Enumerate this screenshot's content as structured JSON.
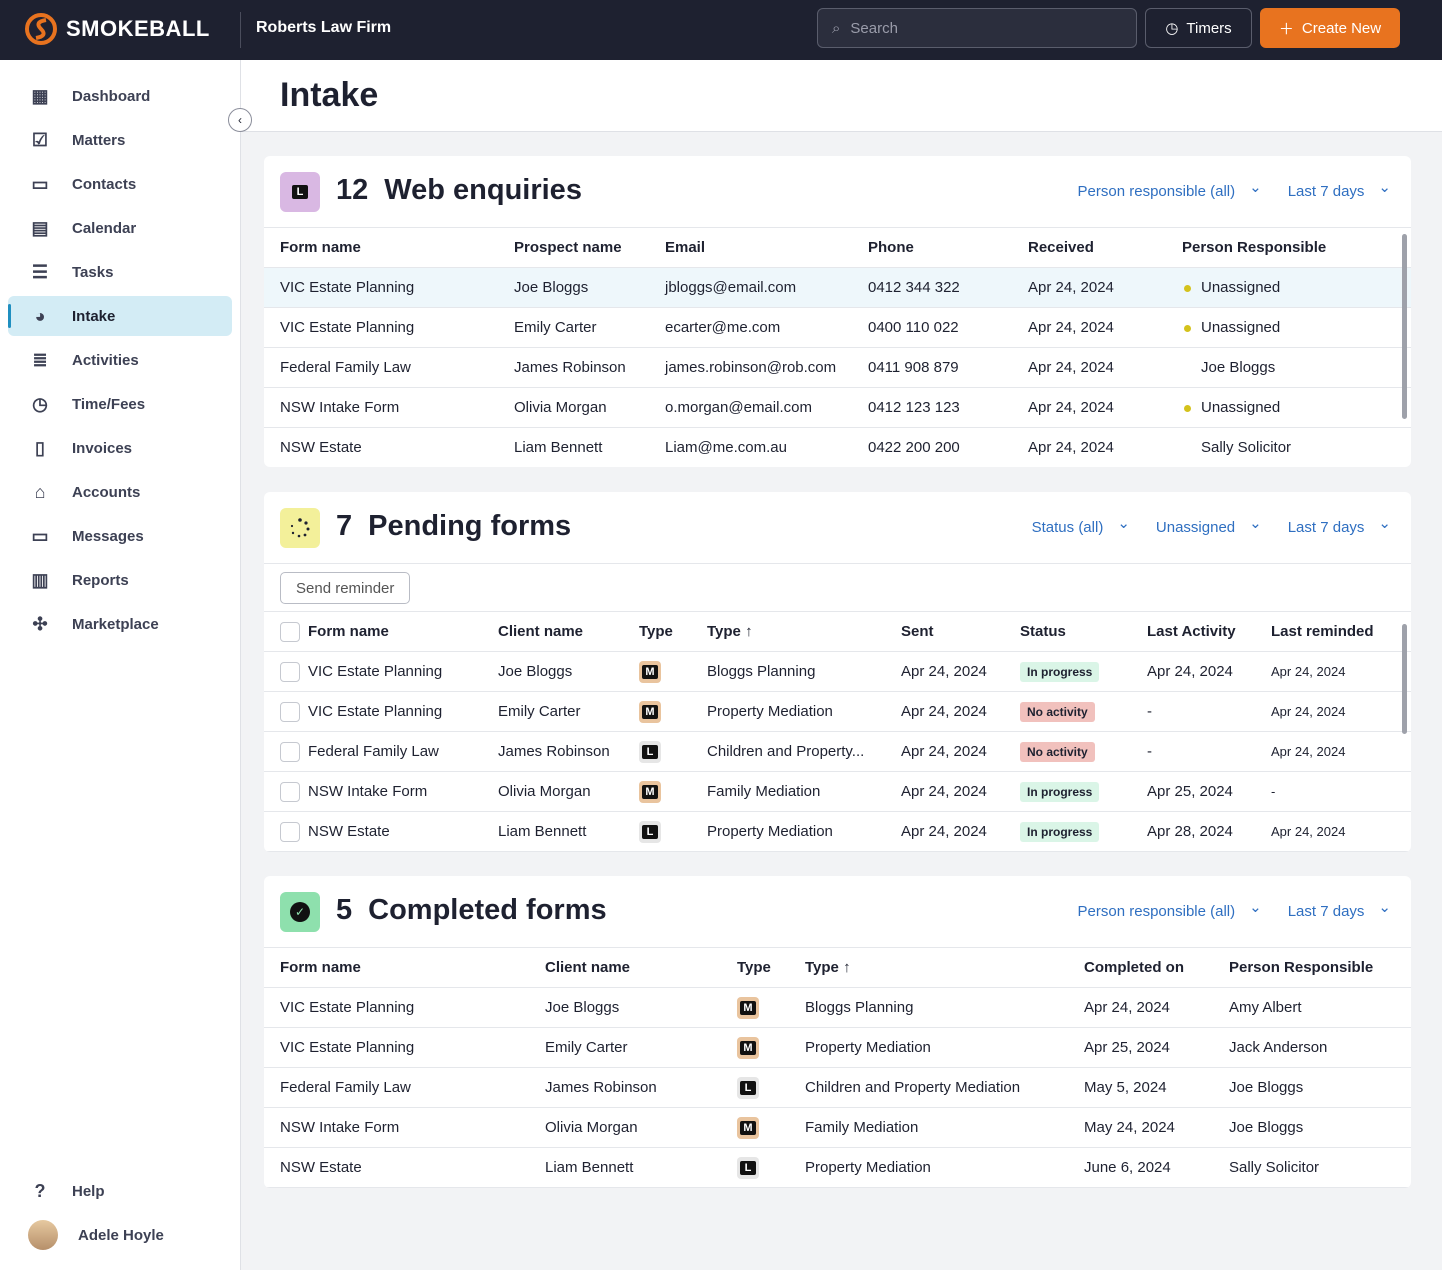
{
  "topbar": {
    "brand": "SMOKEBALL",
    "firm": "Roberts Law Firm",
    "search_placeholder": "Search",
    "timers": "Timers",
    "create_new": "Create New"
  },
  "sidebar": {
    "items": [
      {
        "label": "Dashboard",
        "icon": "dashboard-icon",
        "glyph": "▦"
      },
      {
        "label": "Matters",
        "icon": "matters-icon",
        "glyph": "☑"
      },
      {
        "label": "Contacts",
        "icon": "contacts-icon",
        "glyph": "▭"
      },
      {
        "label": "Calendar",
        "icon": "calendar-icon",
        "glyph": "▤"
      },
      {
        "label": "Tasks",
        "icon": "tasks-icon",
        "glyph": "☰"
      },
      {
        "label": "Intake",
        "icon": "intake-icon",
        "glyph": "◕",
        "active": true
      },
      {
        "label": "Activities",
        "icon": "activities-icon",
        "glyph": "≣"
      },
      {
        "label": "Time/Fees",
        "icon": "clock-icon",
        "glyph": "◷"
      },
      {
        "label": "Invoices",
        "icon": "invoice-icon",
        "glyph": "▯"
      },
      {
        "label": "Accounts",
        "icon": "bank-icon",
        "glyph": "⌂"
      },
      {
        "label": "Messages",
        "icon": "messages-icon",
        "glyph": "▭"
      },
      {
        "label": "Reports",
        "icon": "reports-icon",
        "glyph": "▥"
      },
      {
        "label": "Marketplace",
        "icon": "puzzle-icon",
        "glyph": "✣"
      }
    ],
    "help": "Help",
    "user": "Adele Hoyle"
  },
  "page": {
    "title": "Intake"
  },
  "colors": {
    "accent": "#e8731f",
    "topbar": "#1e2130",
    "link": "#2f6fc1"
  },
  "web": {
    "count": "12",
    "title": "Web enquiries",
    "filters": [
      "Person responsible (all)",
      "Last 7 days"
    ],
    "headers": [
      "Form name",
      "Prospect name",
      "Email",
      "Phone",
      "Received",
      "Person Responsible"
    ],
    "rows": [
      [
        "VIC Estate Planning",
        "Joe Bloggs",
        "jbloggs@email.com",
        "0412 344 322",
        "Apr 24, 2024",
        "Unassigned"
      ],
      [
        "VIC Estate Planning",
        "Emily Carter",
        "ecarter@me.com",
        "0400 110 022",
        "Apr 24, 2024",
        "Unassigned"
      ],
      [
        "Federal Family Law",
        "James Robinson",
        "james.robinson@rob.com",
        "0411 908 879",
        "Apr 24, 2024",
        "Joe Bloggs"
      ],
      [
        "NSW Intake Form",
        "Olivia Morgan",
        "o.morgan@email.com",
        "0412 123 123",
        "Apr 24, 2024",
        "Unassigned"
      ],
      [
        "NSW Estate",
        "Liam Bennett",
        "Liam@me.com.au",
        "0422 200 200",
        "Apr 24, 2024",
        "Sally Solicitor"
      ]
    ]
  },
  "pending": {
    "count": "7",
    "title": "Pending forms",
    "filters": [
      "Status (all)",
      "Unassigned",
      "Last 7 days"
    ],
    "send_reminder": "Send reminder",
    "headers": [
      "Form name",
      "Client name",
      "Type",
      "Type ↑",
      "Sent",
      "Status",
      "Last Activity",
      "Last reminded"
    ],
    "rows": [
      [
        "VIC Estate Planning",
        "Joe Bloggs",
        "M",
        "Bloggs Planning",
        "Apr 24, 2024",
        "In progress",
        "Apr 24, 2024",
        "Apr 24, 2024"
      ],
      [
        "VIC Estate Planning",
        "Emily Carter",
        "M",
        "Property Mediation",
        "Apr 24, 2024",
        "No activity",
        "-",
        "Apr 24, 2024"
      ],
      [
        "Federal Family Law",
        "James Robinson",
        "L",
        "Children and Property...",
        "Apr 24, 2024",
        "No activity",
        "-",
        "Apr 24, 2024"
      ],
      [
        "NSW Intake Form",
        "Olivia Morgan",
        "M",
        "Family Mediation",
        "Apr 24, 2024",
        "In progress",
        "Apr 25, 2024",
        "-"
      ],
      [
        "NSW Estate",
        "Liam Bennett",
        "L",
        "Property Mediation",
        "Apr 24, 2024",
        "In progress",
        "Apr 28, 2024",
        "Apr 24, 2024"
      ]
    ]
  },
  "completed": {
    "count": "5",
    "title": "Completed forms",
    "filters": [
      "Person responsible (all)",
      "Last 7 days"
    ],
    "headers": [
      "Form name",
      "Client name",
      "Type",
      "Type ↑",
      "Completed on",
      "Person Responsible"
    ],
    "rows": [
      [
        "VIC Estate Planning",
        "Joe Bloggs",
        "M",
        "Bloggs Planning",
        "Apr 24, 2024",
        "Amy Albert"
      ],
      [
        "VIC Estate Planning",
        "Emily Carter",
        "M",
        "Property Mediation",
        "Apr 25, 2024",
        "Jack Anderson"
      ],
      [
        "Federal Family Law",
        "James Robinson",
        "L",
        "Children and Property Mediation",
        "May 5, 2024",
        "Joe Bloggs"
      ],
      [
        "NSW Intake Form",
        "Olivia Morgan",
        "M",
        "Family Mediation",
        "May 24, 2024",
        "Joe Bloggs"
      ],
      [
        "NSW Estate",
        "Liam Bennett",
        "L",
        "Property Mediation",
        "June 6, 2024",
        "Sally Solicitor"
      ]
    ]
  }
}
